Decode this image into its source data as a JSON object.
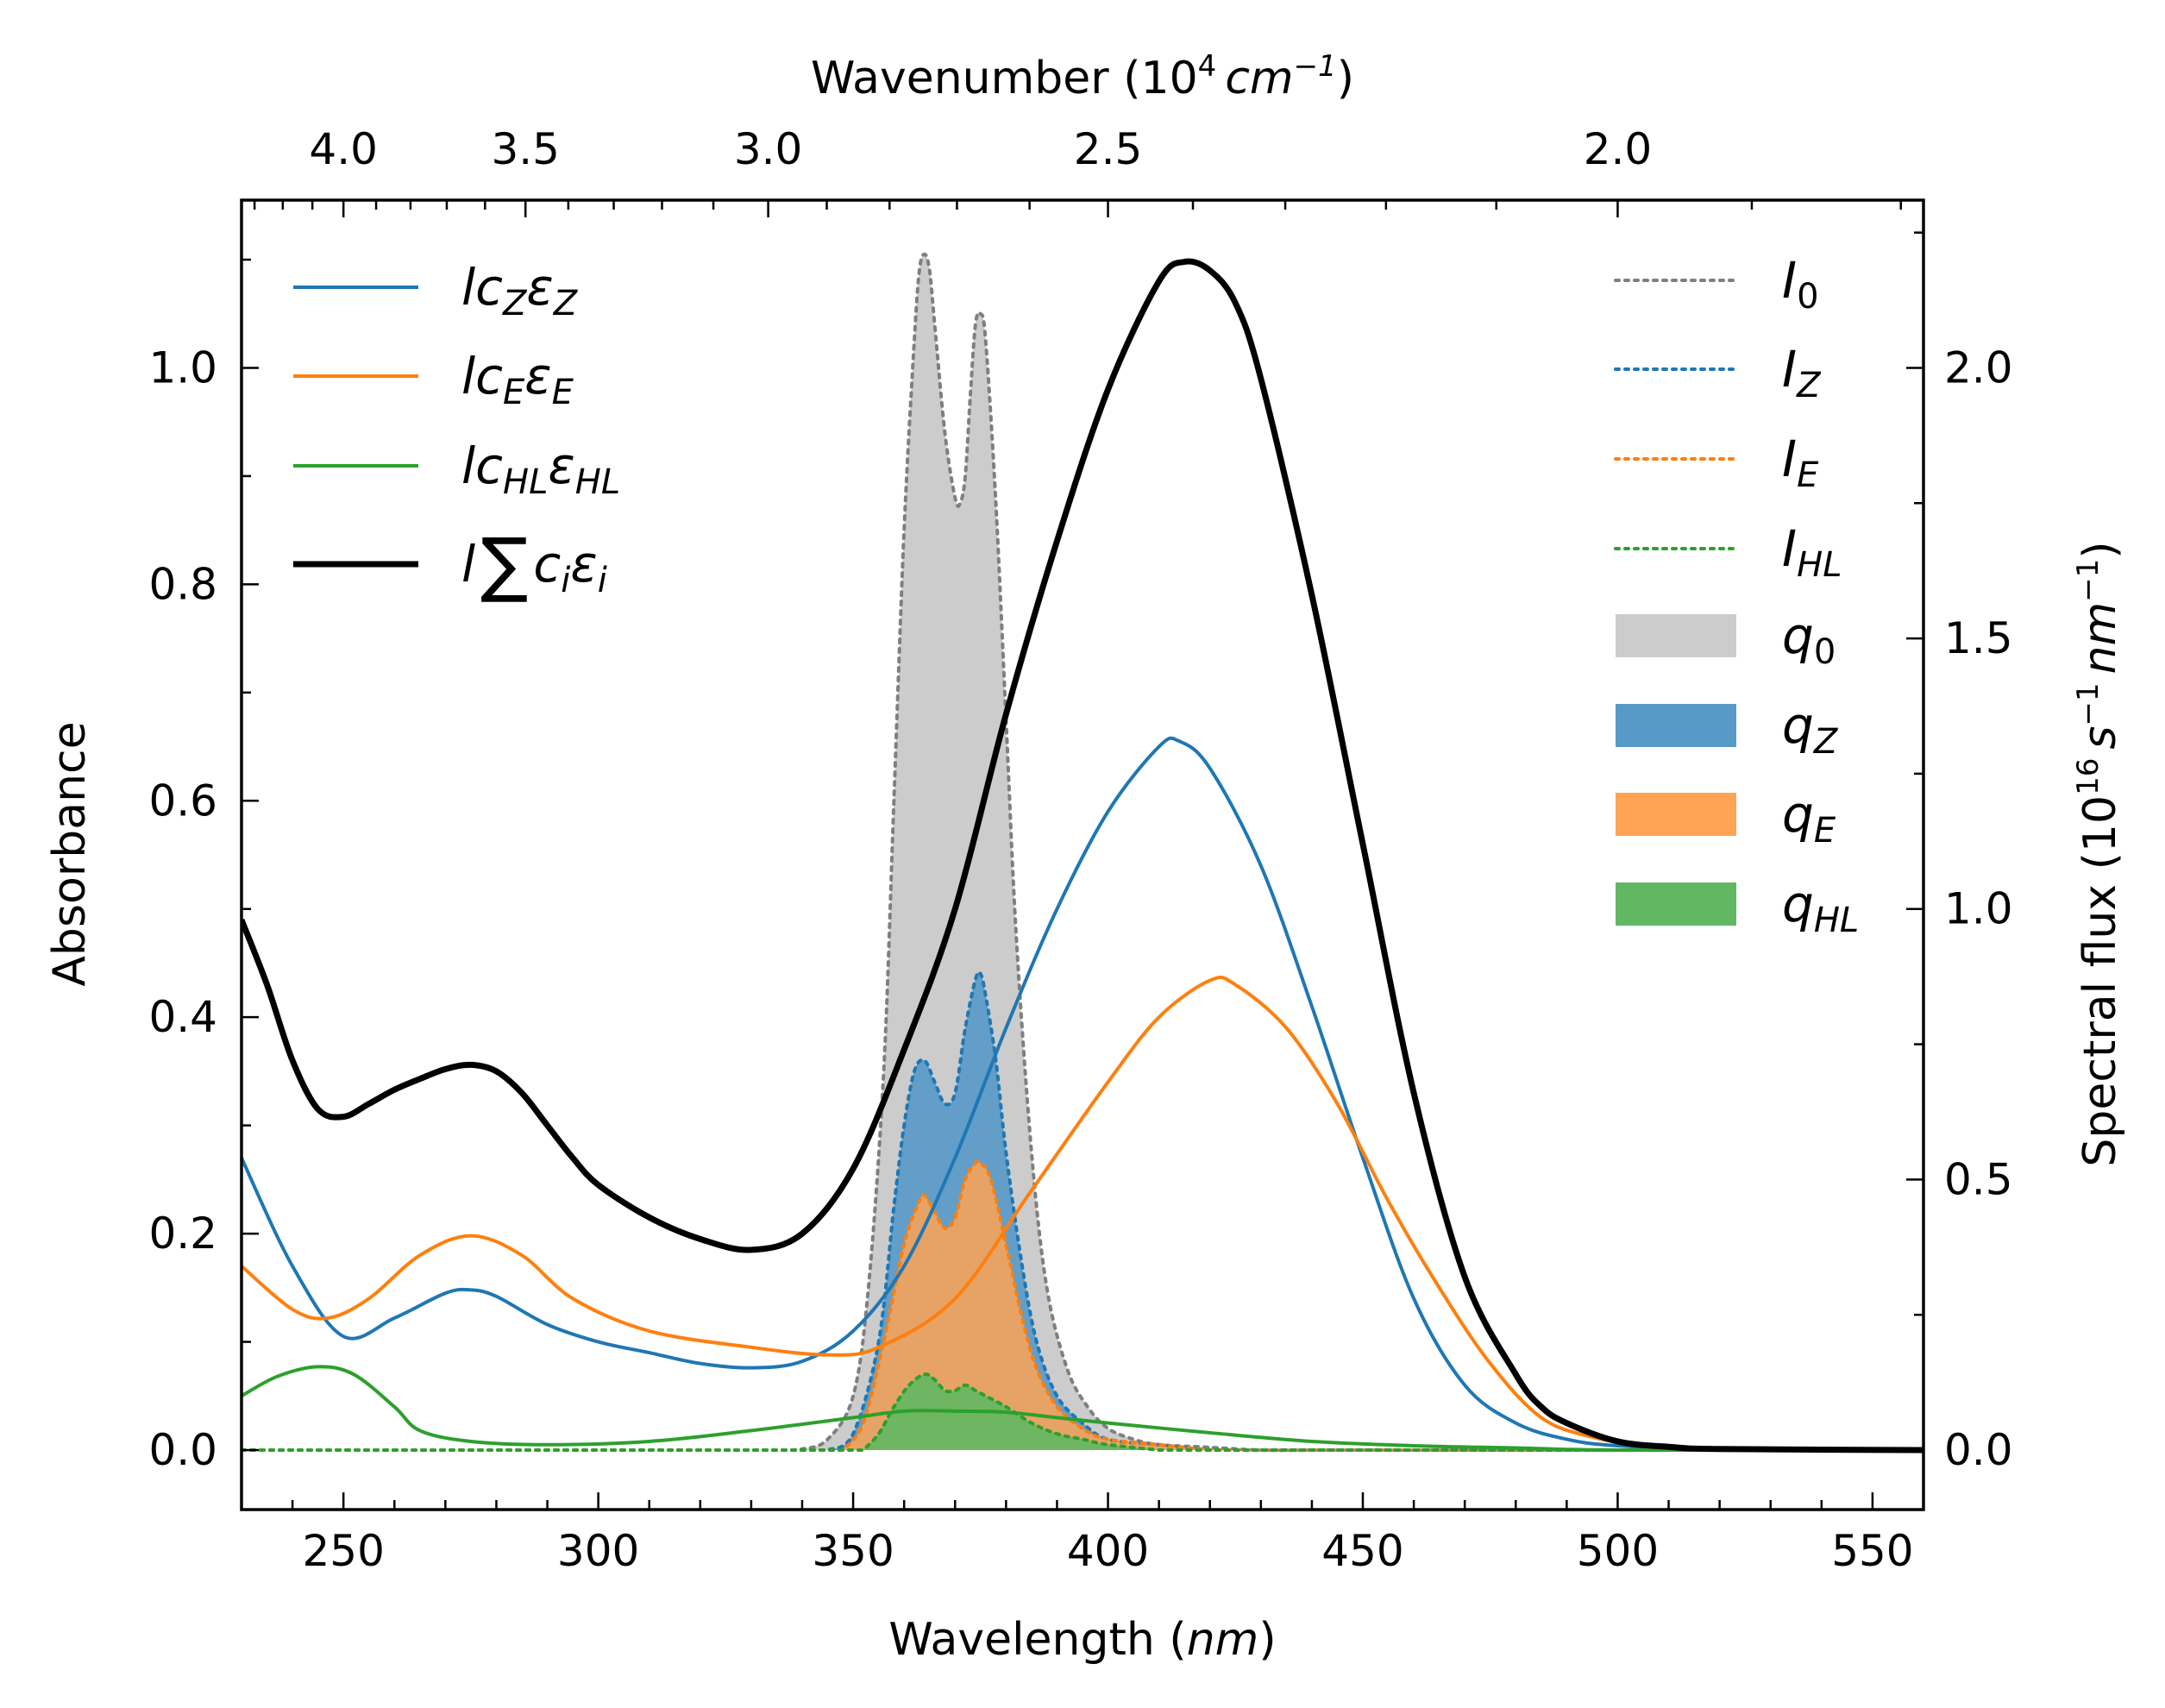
{
  "chart_data": {
    "type": "line",
    "x_axis": {
      "label": "Wavelength",
      "unit": "nm",
      "range": [
        230,
        560
      ],
      "ticks": [
        250,
        300,
        350,
        400,
        450,
        500,
        550
      ]
    },
    "top_axis": {
      "label": "Wavenumber",
      "unit_base": "10",
      "unit_exp": "4",
      "unit_cm": "cm",
      "unit_cm_exp": "−1",
      "ticks": [
        4.0,
        3.5,
        3.0,
        2.5,
        2.0
      ],
      "tick_labels": [
        "4.0",
        "3.5",
        "3.0",
        "2.5",
        "2.0"
      ]
    },
    "y_left": {
      "label": "Absorbance",
      "range": [
        -0.055,
        1.155
      ],
      "ticks": [
        0.0,
        0.2,
        0.4,
        0.6,
        0.8,
        1.0
      ],
      "tick_labels": [
        "0.0",
        "0.2",
        "0.4",
        "0.6",
        "0.8",
        "1.0"
      ]
    },
    "y_right": {
      "label": "Spectral flux",
      "unit_base": "10",
      "unit_exp": "16",
      "unit_s": "s",
      "unit_s_exp": "−1",
      "unit_nm": "nm",
      "unit_nm_exp": "−1",
      "range": [
        -0.11,
        2.31
      ],
      "ticks": [
        0.0,
        0.5,
        1.0,
        1.5,
        2.0
      ],
      "tick_labels": [
        "0.0",
        "0.5",
        "1.0",
        "1.5",
        "2.0"
      ]
    },
    "absorbance_series": [
      {
        "key": "lcZeZ",
        "color": "#1f77b4",
        "width": 4,
        "points": [
          [
            230,
            0.27
          ],
          [
            240,
            0.17
          ],
          [
            250,
            0.105
          ],
          [
            260,
            0.122
          ],
          [
            270,
            0.145
          ],
          [
            275,
            0.148
          ],
          [
            280,
            0.142
          ],
          [
            290,
            0.116
          ],
          [
            300,
            0.1
          ],
          [
            310,
            0.09
          ],
          [
            320,
            0.08
          ],
          [
            330,
            0.076
          ],
          [
            340,
            0.082
          ],
          [
            350,
            0.11
          ],
          [
            360,
            0.17
          ],
          [
            370,
            0.27
          ],
          [
            380,
            0.39
          ],
          [
            390,
            0.5
          ],
          [
            400,
            0.59
          ],
          [
            410,
            0.65
          ],
          [
            414,
            0.655
          ],
          [
            420,
            0.63
          ],
          [
            430,
            0.54
          ],
          [
            440,
            0.41
          ],
          [
            450,
            0.27
          ],
          [
            460,
            0.14
          ],
          [
            470,
            0.06
          ],
          [
            480,
            0.025
          ],
          [
            490,
            0.01
          ],
          [
            500,
            0.004
          ],
          [
            520,
            0.001
          ],
          [
            560,
            0.0
          ]
        ]
      },
      {
        "key": "lcEeE",
        "color": "#ff7f0e",
        "width": 4,
        "points": [
          [
            230,
            0.17
          ],
          [
            240,
            0.13
          ],
          [
            247,
            0.122
          ],
          [
            255,
            0.14
          ],
          [
            265,
            0.18
          ],
          [
            275,
            0.198
          ],
          [
            285,
            0.18
          ],
          [
            295,
            0.14
          ],
          [
            310,
            0.11
          ],
          [
            330,
            0.095
          ],
          [
            345,
            0.088
          ],
          [
            355,
            0.095
          ],
          [
            370,
            0.14
          ],
          [
            385,
            0.24
          ],
          [
            400,
            0.34
          ],
          [
            410,
            0.4
          ],
          [
            420,
            0.434
          ],
          [
            425,
            0.43
          ],
          [
            435,
            0.39
          ],
          [
            445,
            0.32
          ],
          [
            455,
            0.23
          ],
          [
            465,
            0.15
          ],
          [
            475,
            0.08
          ],
          [
            485,
            0.03
          ],
          [
            495,
            0.012
          ],
          [
            505,
            0.005
          ],
          [
            520,
            0.001
          ],
          [
            560,
            0.0
          ]
        ]
      },
      {
        "key": "lcHLeHL",
        "color": "#2ca02c",
        "width": 4,
        "points": [
          [
            230,
            0.05
          ],
          [
            237,
            0.068
          ],
          [
            245,
            0.077
          ],
          [
            252,
            0.07
          ],
          [
            260,
            0.04
          ],
          [
            265,
            0.018
          ],
          [
            275,
            0.008
          ],
          [
            290,
            0.005
          ],
          [
            310,
            0.008
          ],
          [
            330,
            0.018
          ],
          [
            350,
            0.03
          ],
          [
            360,
            0.036
          ],
          [
            370,
            0.036
          ],
          [
            380,
            0.035
          ],
          [
            390,
            0.03
          ],
          [
            400,
            0.025
          ],
          [
            420,
            0.016
          ],
          [
            440,
            0.008
          ],
          [
            460,
            0.004
          ],
          [
            480,
            0.002
          ],
          [
            500,
            0.0
          ],
          [
            560,
            0.0
          ]
        ]
      },
      {
        "key": "lsum",
        "color": "#000000",
        "width": 7,
        "points": [
          [
            230,
            0.49
          ],
          [
            235,
            0.43
          ],
          [
            240,
            0.36
          ],
          [
            245,
            0.315
          ],
          [
            250,
            0.308
          ],
          [
            255,
            0.32
          ],
          [
            260,
            0.333
          ],
          [
            265,
            0.343
          ],
          [
            270,
            0.352
          ],
          [
            275,
            0.356
          ],
          [
            280,
            0.35
          ],
          [
            285,
            0.33
          ],
          [
            290,
            0.3
          ],
          [
            295,
            0.27
          ],
          [
            300,
            0.245
          ],
          [
            310,
            0.215
          ],
          [
            320,
            0.195
          ],
          [
            330,
            0.185
          ],
          [
            340,
            0.2
          ],
          [
            350,
            0.26
          ],
          [
            360,
            0.37
          ],
          [
            370,
            0.5
          ],
          [
            380,
            0.68
          ],
          [
            390,
            0.84
          ],
          [
            400,
            0.98
          ],
          [
            410,
            1.08
          ],
          [
            415,
            1.098
          ],
          [
            420,
            1.09
          ],
          [
            425,
            1.06
          ],
          [
            430,
            0.99
          ],
          [
            440,
            0.79
          ],
          [
            450,
            0.56
          ],
          [
            460,
            0.33
          ],
          [
            470,
            0.16
          ],
          [
            480,
            0.07
          ],
          [
            485,
            0.04
          ],
          [
            490,
            0.025
          ],
          [
            500,
            0.008
          ],
          [
            510,
            0.003
          ],
          [
            520,
            0.001
          ],
          [
            560,
            0.0
          ]
        ]
      }
    ],
    "flux_series": [
      {
        "key": "I0",
        "line_color": "#7f7f7f",
        "fill_color": "#cccccc",
        "fill_opacity": 1.0,
        "points": [
          [
            335,
            0.0
          ],
          [
            340,
            0.002
          ],
          [
            345,
            0.02
          ],
          [
            350,
            0.1
          ],
          [
            353,
            0.3
          ],
          [
            356,
            0.7
          ],
          [
            358,
            1.2
          ],
          [
            360,
            1.7
          ],
          [
            362,
            2.05
          ],
          [
            363,
            2.18
          ],
          [
            364,
            2.21
          ],
          [
            365,
            2.18
          ],
          [
            366,
            2.08
          ],
          [
            368,
            1.88
          ],
          [
            370,
            1.76
          ],
          [
            371,
            1.75
          ],
          [
            372,
            1.8
          ],
          [
            373,
            1.95
          ],
          [
            374,
            2.08
          ],
          [
            375,
            2.1
          ],
          [
            376,
            2.05
          ],
          [
            378,
            1.75
          ],
          [
            380,
            1.35
          ],
          [
            382,
            0.95
          ],
          [
            385,
            0.55
          ],
          [
            388,
            0.3
          ],
          [
            392,
            0.15
          ],
          [
            396,
            0.08
          ],
          [
            400,
            0.04
          ],
          [
            405,
            0.02
          ],
          [
            410,
            0.01
          ],
          [
            420,
            0.005
          ],
          [
            430,
            0.0
          ],
          [
            440,
            0.0
          ]
        ]
      },
      {
        "key": "IZ",
        "line_color": "#1f77b4",
        "fill_color": "#5799c7",
        "fill_opacity": 0.9,
        "points": [
          [
            345,
            0.0
          ],
          [
            350,
            0.03
          ],
          [
            355,
            0.2
          ],
          [
            358,
            0.45
          ],
          [
            360,
            0.6
          ],
          [
            362,
            0.7
          ],
          [
            364,
            0.72
          ],
          [
            366,
            0.68
          ],
          [
            368,
            0.64
          ],
          [
            370,
            0.66
          ],
          [
            372,
            0.78
          ],
          [
            374,
            0.87
          ],
          [
            375,
            0.88
          ],
          [
            376,
            0.84
          ],
          [
            378,
            0.72
          ],
          [
            380,
            0.55
          ],
          [
            383,
            0.35
          ],
          [
            386,
            0.2
          ],
          [
            390,
            0.1
          ],
          [
            395,
            0.05
          ],
          [
            400,
            0.02
          ],
          [
            410,
            0.01
          ],
          [
            420,
            0.0
          ]
        ]
      },
      {
        "key": "IE",
        "line_color": "#ff7f0e",
        "fill_color": "#ffa354",
        "fill_opacity": 0.85,
        "points": [
          [
            348,
            0.0
          ],
          [
            352,
            0.05
          ],
          [
            356,
            0.2
          ],
          [
            360,
            0.38
          ],
          [
            363,
            0.46
          ],
          [
            364,
            0.47
          ],
          [
            366,
            0.44
          ],
          [
            368,
            0.41
          ],
          [
            370,
            0.43
          ],
          [
            372,
            0.5
          ],
          [
            374,
            0.53
          ],
          [
            375,
            0.53
          ],
          [
            377,
            0.5
          ],
          [
            380,
            0.38
          ],
          [
            383,
            0.25
          ],
          [
            386,
            0.15
          ],
          [
            390,
            0.08
          ],
          [
            395,
            0.04
          ],
          [
            400,
            0.02
          ],
          [
            410,
            0.01
          ],
          [
            420,
            0.0
          ]
        ]
      },
      {
        "key": "IHL",
        "line_color": "#2ca02c",
        "fill_color": "#62b862",
        "fill_opacity": 0.9,
        "points": [
          [
            352,
            0.0
          ],
          [
            355,
            0.03
          ],
          [
            358,
            0.08
          ],
          [
            361,
            0.12
          ],
          [
            364,
            0.14
          ],
          [
            366,
            0.13
          ],
          [
            368,
            0.11
          ],
          [
            370,
            0.11
          ],
          [
            372,
            0.12
          ],
          [
            374,
            0.11
          ],
          [
            376,
            0.1
          ],
          [
            380,
            0.08
          ],
          [
            385,
            0.05
          ],
          [
            390,
            0.03
          ],
          [
            395,
            0.02
          ],
          [
            400,
            0.01
          ],
          [
            410,
            0.0
          ]
        ]
      }
    ],
    "legend_left": [
      {
        "key": "lcZeZ",
        "color": "#1f77b4",
        "width": 4,
        "base": "lc",
        "sub1": "Z",
        "mid": "ε",
        "sub2": "Z"
      },
      {
        "key": "lcEeE",
        "color": "#ff7f0e",
        "width": 4,
        "base": "lc",
        "sub1": "E",
        "mid": "ε",
        "sub2": "E"
      },
      {
        "key": "lcHLeHL",
        "color": "#2ca02c",
        "width": 4,
        "base": "lc",
        "sub1": "HL",
        "mid": "ε",
        "sub2": "HL"
      },
      {
        "key": "lsum",
        "color": "#000000",
        "width": 7,
        "base": "l",
        "sigma": "∑",
        "c": "c",
        "sub1": "i",
        "mid": "ε",
        "sub2": "i"
      }
    ],
    "legend_right": [
      {
        "kind": "dotted",
        "color": "#7f7f7f",
        "base": "I",
        "sub": "0"
      },
      {
        "kind": "dotted",
        "color": "#1f77b4",
        "base": "I",
        "sub": "Z"
      },
      {
        "kind": "dotted",
        "color": "#ff7f0e",
        "base": "I",
        "sub": "E"
      },
      {
        "kind": "dotted",
        "color": "#2ca02c",
        "base": "I",
        "sub": "HL"
      },
      {
        "kind": "patch",
        "color": "#cccccc",
        "base": "q",
        "sub": "0"
      },
      {
        "kind": "patch",
        "color": "#5799c7",
        "base": "q",
        "sub": "Z"
      },
      {
        "kind": "patch",
        "color": "#ffa354",
        "base": "q",
        "sub": "E"
      },
      {
        "kind": "patch",
        "color": "#62b862",
        "base": "q",
        "sub": "HL"
      }
    ]
  }
}
